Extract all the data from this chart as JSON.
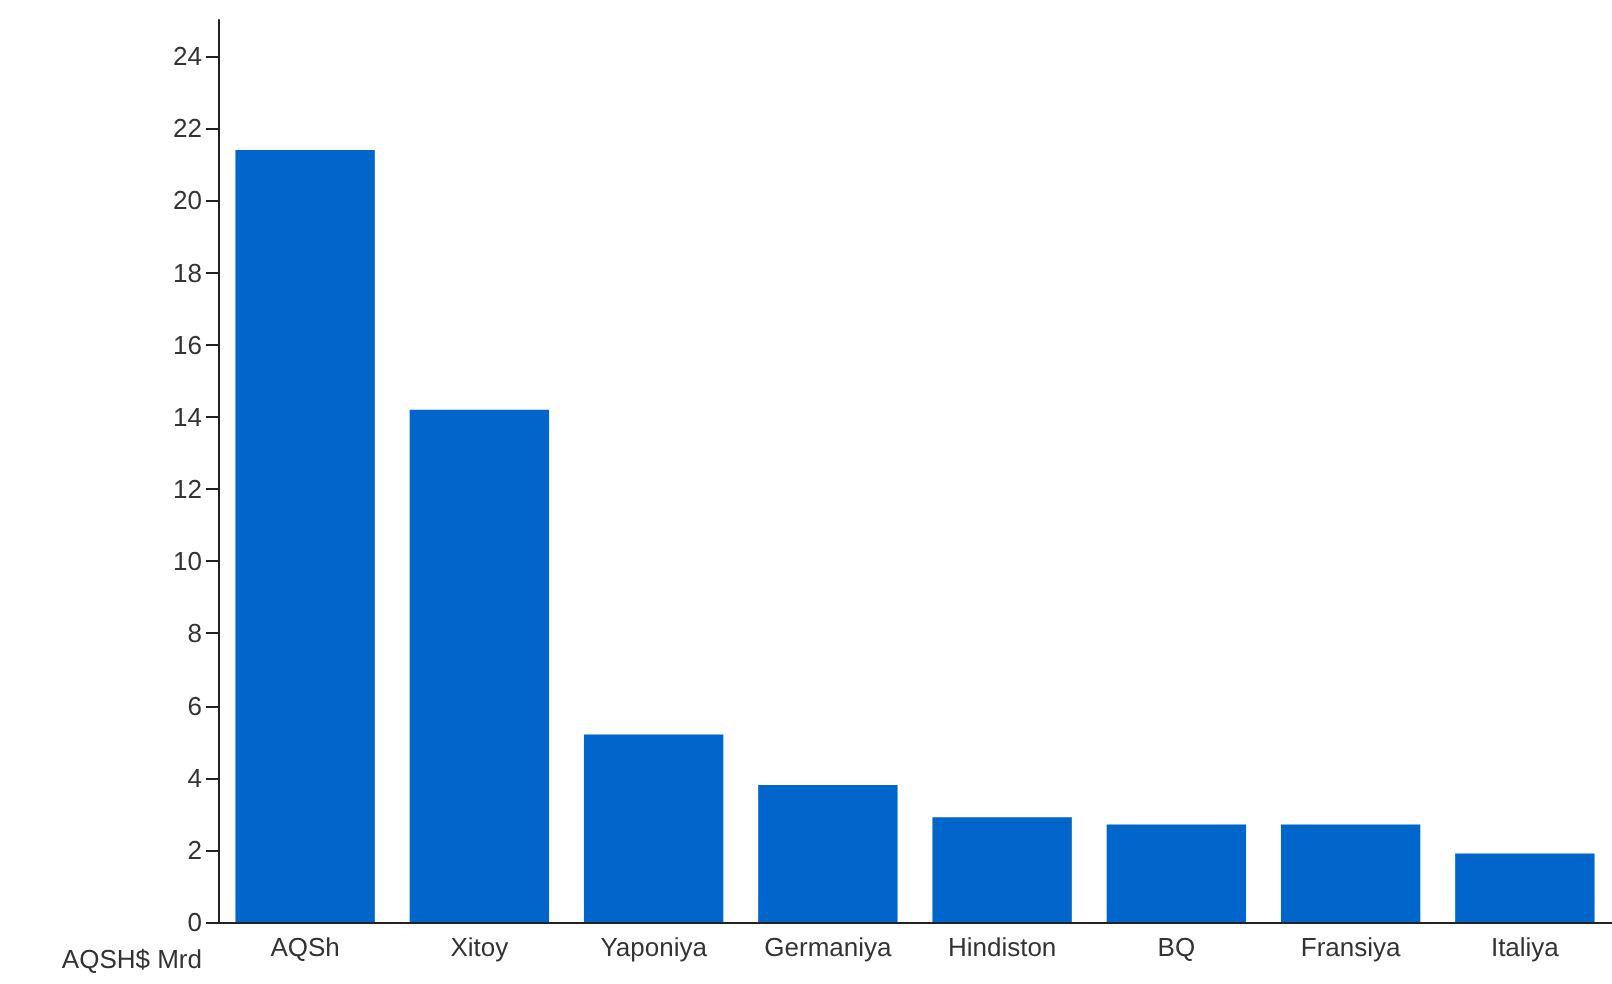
{
  "chart_data": {
    "type": "bar",
    "ylabel": "AQSH$ Mrd",
    "categories": [
      "AQSh",
      "Xitoy",
      "Yaponiya",
      "Germaniya",
      "Hindiston",
      "BQ",
      "Fransiya",
      "Italiya"
    ],
    "values": [
      21.4,
      14.2,
      5.2,
      3.8,
      2.9,
      2.7,
      2.7,
      1.9
    ],
    "color": "#0066cc",
    "ylim": [
      0,
      25
    ],
    "yticks": [
      0,
      2,
      4,
      6,
      8,
      10,
      12,
      14,
      16,
      18,
      20,
      22,
      24
    ],
    "grid": false
  }
}
